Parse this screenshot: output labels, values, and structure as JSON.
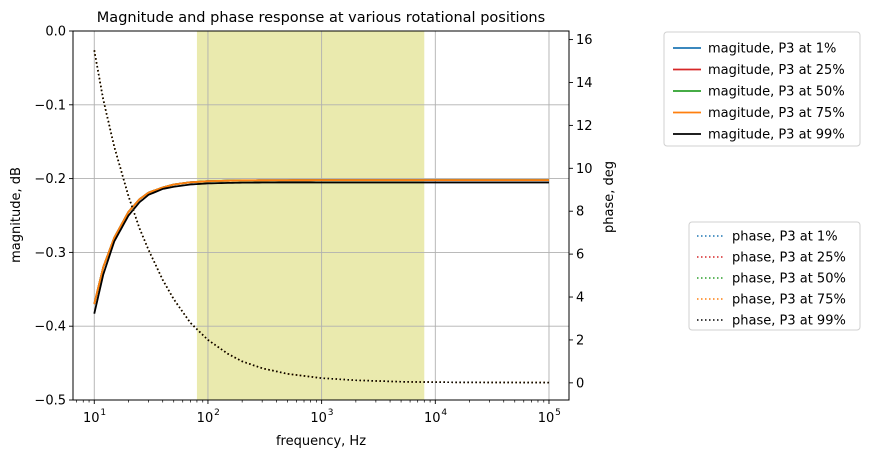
{
  "chart_data": {
    "type": "line",
    "title": "Magnitude and phase response at various rotational positions",
    "xlabel": "frequency, Hz",
    "ylabel_left": "magnitude, dB",
    "ylabel_right": "phase, deg",
    "xscale": "log",
    "xlim": [
      6.5,
      150000
    ],
    "ylim_left": [
      -0.5,
      0.0
    ],
    "ylim_right": [
      -0.8,
      16.4
    ],
    "grid": true,
    "x_ticks": [
      {
        "value": 10,
        "label": "10"
      },
      {
        "value": 100,
        "label": "10"
      },
      {
        "value": 1000,
        "label": "10"
      },
      {
        "value": 10000,
        "label": "10"
      },
      {
        "value": 100000,
        "label": "10"
      }
    ],
    "x_tick_exponents": [
      "1",
      "2",
      "3",
      "4",
      "5"
    ],
    "y_left_ticks": [
      "0.0",
      "−0.1",
      "−0.2",
      "−0.3",
      "−0.4",
      "−0.5"
    ],
    "y_left_tick_values": [
      0.0,
      -0.1,
      -0.2,
      -0.3,
      -0.4,
      -0.5
    ],
    "y_right_ticks": [
      "0",
      "2",
      "4",
      "6",
      "8",
      "10",
      "12",
      "14",
      "16"
    ],
    "y_right_tick_values": [
      0,
      2,
      4,
      6,
      8,
      10,
      12,
      14,
      16
    ],
    "shaded_band": {
      "x_from": 80,
      "x_to": 8000,
      "color": "#e6e6a0"
    },
    "x": [
      10,
      12,
      15,
      20,
      25,
      30,
      40,
      50,
      70,
      100,
      150,
      200,
      300,
      500,
      1000,
      2000,
      5000,
      10000,
      100000
    ],
    "magnitude_series": [
      {
        "name": "magitude, P3 at 1%",
        "color": "#1f77b4",
        "values": [
          -0.37,
          -0.32,
          -0.28,
          -0.245,
          -0.228,
          -0.219,
          -0.212,
          -0.208,
          -0.205,
          -0.2035,
          -0.2028,
          -0.2025,
          -0.2023,
          -0.2022,
          -0.2021,
          -0.2021,
          -0.2021,
          -0.2021,
          -0.2021
        ]
      },
      {
        "name": "magitude, P3 at 25%",
        "color": "#d62728",
        "values": [
          -0.37,
          -0.32,
          -0.28,
          -0.245,
          -0.228,
          -0.219,
          -0.212,
          -0.208,
          -0.205,
          -0.2035,
          -0.2028,
          -0.2025,
          -0.2023,
          -0.2022,
          -0.2021,
          -0.2021,
          -0.2021,
          -0.2021,
          -0.2021
        ]
      },
      {
        "name": "magitude, P3 at 50%",
        "color": "#2ca02c",
        "values": [
          -0.37,
          -0.32,
          -0.28,
          -0.245,
          -0.228,
          -0.219,
          -0.212,
          -0.208,
          -0.205,
          -0.2035,
          -0.2028,
          -0.2025,
          -0.2023,
          -0.2022,
          -0.2021,
          -0.2021,
          -0.2021,
          -0.2021,
          -0.2021
        ]
      },
      {
        "name": "magitude, P3 at 75%",
        "color": "#ff7f0e",
        "values": [
          -0.37,
          -0.32,
          -0.28,
          -0.245,
          -0.228,
          -0.219,
          -0.212,
          -0.208,
          -0.205,
          -0.2035,
          -0.2028,
          -0.2025,
          -0.2023,
          -0.2022,
          -0.2021,
          -0.2021,
          -0.2021,
          -0.2021,
          -0.2021
        ]
      },
      {
        "name": "magitude, P3 at 99%",
        "color": "#000000",
        "values": [
          -0.383,
          -0.33,
          -0.285,
          -0.25,
          -0.232,
          -0.222,
          -0.214,
          -0.211,
          -0.208,
          -0.2065,
          -0.2058,
          -0.2055,
          -0.2053,
          -0.2052,
          -0.2052,
          -0.2052,
          -0.2052,
          -0.2052,
          -0.2052
        ]
      }
    ],
    "phase_series": [
      {
        "name": "phase, P3 at 1%",
        "color": "#1f77b4",
        "values": [
          15.5,
          13.2,
          11.0,
          8.7,
          7.2,
          6.2,
          4.8,
          3.9,
          2.8,
          2.0,
          1.35,
          1.0,
          0.68,
          0.42,
          0.22,
          0.12,
          0.05,
          0.03,
          0.01
        ]
      },
      {
        "name": "phase, P3 at 25%",
        "color": "#d62728",
        "values": [
          15.5,
          13.2,
          11.0,
          8.7,
          7.2,
          6.2,
          4.8,
          3.9,
          2.8,
          2.0,
          1.35,
          1.0,
          0.68,
          0.42,
          0.22,
          0.12,
          0.05,
          0.03,
          0.01
        ]
      },
      {
        "name": "phase, P3 at 50%",
        "color": "#2ca02c",
        "values": [
          15.5,
          13.2,
          11.0,
          8.7,
          7.2,
          6.2,
          4.8,
          3.9,
          2.8,
          2.0,
          1.35,
          1.0,
          0.68,
          0.42,
          0.22,
          0.12,
          0.05,
          0.03,
          0.01
        ]
      },
      {
        "name": "phase, P3 at 75%",
        "color": "#ff7f0e",
        "values": [
          15.5,
          13.2,
          11.0,
          8.7,
          7.2,
          6.2,
          4.8,
          3.9,
          2.8,
          2.0,
          1.35,
          1.0,
          0.68,
          0.42,
          0.22,
          0.12,
          0.05,
          0.03,
          0.01
        ]
      },
      {
        "name": "phase, P3 at 99%",
        "color": "#000000",
        "values": [
          15.5,
          13.2,
          11.0,
          8.7,
          7.2,
          6.2,
          4.8,
          3.9,
          2.8,
          2.0,
          1.35,
          1.0,
          0.68,
          0.42,
          0.22,
          0.12,
          0.05,
          0.03,
          0.01
        ]
      }
    ],
    "legend_magnitude_placement": "outside-right-top",
    "legend_phase_placement": "outside-right-middle"
  }
}
